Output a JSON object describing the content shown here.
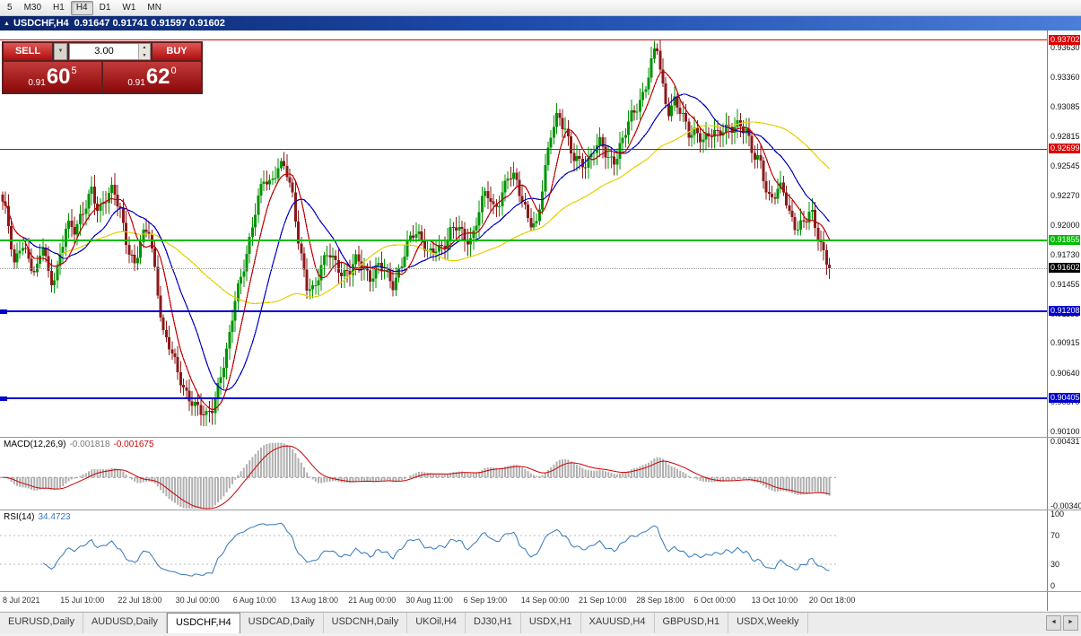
{
  "toolbar": {
    "period_buttons": [
      "5",
      "M30",
      "H1",
      "H4",
      "D1",
      "W1",
      "MN"
    ],
    "active_period": "H4"
  },
  "window": {
    "symbol_period": "USDCHF,H4",
    "ohlc_text": "0.91647 0.91741 0.91597 0.91602",
    "open": "0.91647",
    "high": "0.91741",
    "low": "0.91597",
    "close": "0.91602"
  },
  "icons": {
    "chart_marker": "▲",
    "dropdown": "▼",
    "spin_up": "▲",
    "spin_down": "▼",
    "scroll_left": "◄",
    "scroll_right": "►"
  },
  "trade_panel": {
    "sell_label": "SELL",
    "buy_label": "BUY",
    "volume": "3.00",
    "sell_price": {
      "small": "0.91",
      "big": "60",
      "sup": "5"
    },
    "buy_price": {
      "small": "0.91",
      "big": "62",
      "sup": "0"
    }
  },
  "chart_data": {
    "type": "candlestick",
    "symbol": "USDCHF",
    "timeframe": "H4",
    "price_range": {
      "top": 0.9379,
      "bottom": 0.9005
    },
    "price_axis_ticks": [
      "0.93630",
      "0.93360",
      "0.93085",
      "0.92815",
      "0.92545",
      "0.92270",
      "0.92000",
      "0.91730",
      "0.91455",
      "0.91185",
      "0.90915",
      "0.90640",
      "0.90370",
      "0.90100"
    ],
    "levels": [
      {
        "name": "resistance-line-upper",
        "price": 0.93702,
        "label": "0.93702",
        "color": "#dd0000",
        "thickness": 1
      },
      {
        "name": "resistance-line-lower",
        "price": 0.92699,
        "label": "0.92699",
        "color": "#dd0000",
        "thickness": 1
      },
      {
        "name": "support-line-green",
        "price": 0.91855,
        "label": "0.91855",
        "color": "#00bb00",
        "thickness": 2
      },
      {
        "name": "current-price-line",
        "price": 0.91602,
        "label": "0.91602",
        "color": "#000000",
        "dotted": true
      },
      {
        "name": "support-line-blue-1",
        "price": 0.91208,
        "label": "0.91208",
        "color": "#0000cc",
        "thickness": 2,
        "handles": true
      },
      {
        "name": "support-line-blue-2",
        "price": 0.90405,
        "label": "0.90405",
        "color": "#0000cc",
        "thickness": 2,
        "handles": true
      }
    ],
    "colors": {
      "bull": "#009400",
      "bear": "#8b1a1a",
      "ma_fast": "#c00000",
      "ma_mid": "#0000c0",
      "ma_slow": "#e6cf00",
      "macd_hist": "#b0b0b0",
      "macd_signal": "#cc0000",
      "rsi_line": "#3377bb"
    },
    "moving_averages": [
      {
        "period": 55,
        "color": "#e6cf00"
      },
      {
        "period": 20,
        "color": "#0000c0"
      },
      {
        "period": 8,
        "color": "#c00000"
      }
    ],
    "close_path": [
      [
        0,
        0.9228
      ],
      [
        8,
        0.9205
      ],
      [
        16,
        0.9162
      ],
      [
        24,
        0.9188
      ],
      [
        32,
        0.9168
      ],
      [
        40,
        0.9152
      ],
      [
        48,
        0.9182
      ],
      [
        56,
        0.9146
      ],
      [
        64,
        0.9162
      ],
      [
        74,
        0.92
      ],
      [
        84,
        0.9192
      ],
      [
        94,
        0.9216
      ],
      [
        102,
        0.9236
      ],
      [
        110,
        0.9212
      ],
      [
        118,
        0.9222
      ],
      [
        126,
        0.9232
      ],
      [
        134,
        0.9216
      ],
      [
        142,
        0.9182
      ],
      [
        150,
        0.9162
      ],
      [
        158,
        0.9186
      ],
      [
        166,
        0.9196
      ],
      [
        174,
        0.9152
      ],
      [
        182,
        0.9102
      ],
      [
        190,
        0.9086
      ],
      [
        198,
        0.9062
      ],
      [
        206,
        0.9046
      ],
      [
        214,
        0.904
      ],
      [
        222,
        0.9032
      ],
      [
        230,
        0.9022
      ],
      [
        238,
        0.903
      ],
      [
        246,
        0.9062
      ],
      [
        254,
        0.9092
      ],
      [
        262,
        0.9132
      ],
      [
        270,
        0.9152
      ],
      [
        278,
        0.9182
      ],
      [
        286,
        0.9222
      ],
      [
        294,
        0.9246
      ],
      [
        302,
        0.9236
      ],
      [
        310,
        0.925
      ],
      [
        318,
        0.9254
      ],
      [
        326,
        0.923
      ],
      [
        334,
        0.918
      ],
      [
        342,
        0.9142
      ],
      [
        350,
        0.9136
      ],
      [
        358,
        0.9162
      ],
      [
        366,
        0.918
      ],
      [
        374,
        0.9166
      ],
      [
        382,
        0.915
      ],
      [
        390,
        0.9156
      ],
      [
        398,
        0.9172
      ],
      [
        406,
        0.9162
      ],
      [
        414,
        0.915
      ],
      [
        422,
        0.9161
      ],
      [
        430,
        0.9156
      ],
      [
        438,
        0.9146
      ],
      [
        446,
        0.9162
      ],
      [
        454,
        0.9182
      ],
      [
        462,
        0.9191
      ],
      [
        470,
        0.9186
      ],
      [
        478,
        0.9176
      ],
      [
        486,
        0.9181
      ],
      [
        494,
        0.9176
      ],
      [
        502,
        0.9191
      ],
      [
        510,
        0.9201
      ],
      [
        518,
        0.9191
      ],
      [
        526,
        0.9186
      ],
      [
        534,
        0.9211
      ],
      [
        542,
        0.9231
      ],
      [
        550,
        0.9216
      ],
      [
        558,
        0.9226
      ],
      [
        566,
        0.9246
      ],
      [
        574,
        0.9241
      ],
      [
        582,
        0.9221
      ],
      [
        590,
        0.9206
      ],
      [
        598,
        0.9201
      ],
      [
        606,
        0.9241
      ],
      [
        614,
        0.9281
      ],
      [
        622,
        0.9301
      ],
      [
        630,
        0.9291
      ],
      [
        638,
        0.9266
      ],
      [
        646,
        0.9256
      ],
      [
        654,
        0.9251
      ],
      [
        662,
        0.9271
      ],
      [
        670,
        0.9281
      ],
      [
        678,
        0.9261
      ],
      [
        686,
        0.9256
      ],
      [
        694,
        0.9276
      ],
      [
        702,
        0.9301
      ],
      [
        710,
        0.9311
      ],
      [
        718,
        0.9321
      ],
      [
        726,
        0.9346
      ],
      [
        732,
        0.9366
      ],
      [
        738,
        0.9331
      ],
      [
        744,
        0.9306
      ],
      [
        752,
        0.9316
      ],
      [
        760,
        0.9301
      ],
      [
        768,
        0.9281
      ],
      [
        776,
        0.9286
      ],
      [
        784,
        0.9281
      ],
      [
        792,
        0.9286
      ],
      [
        800,
        0.9281
      ],
      [
        808,
        0.9286
      ],
      [
        816,
        0.9291
      ],
      [
        824,
        0.9296
      ],
      [
        832,
        0.9286
      ],
      [
        840,
        0.9261
      ],
      [
        848,
        0.9256
      ],
      [
        856,
        0.9226
      ],
      [
        864,
        0.9231
      ],
      [
        872,
        0.9236
      ],
      [
        880,
        0.9206
      ],
      [
        888,
        0.9196
      ],
      [
        896,
        0.9206
      ],
      [
        904,
        0.9216
      ],
      [
        912,
        0.9186
      ],
      [
        918,
        0.9171
      ],
      [
        924,
        0.91602
      ]
    ]
  },
  "macd": {
    "name": "MACD(12,26,9)",
    "main_value": "-0.001818",
    "signal_value": "-0.001675",
    "axis_max": "0.00431",
    "axis_min": "-0.00340"
  },
  "rsi": {
    "name": "RSI(14)",
    "value": "34.4723",
    "axis": [
      "100",
      "70",
      "30",
      "0"
    ],
    "level_lines": [
      70,
      30
    ]
  },
  "time_axis": {
    "labels": [
      "8 Jul 2021",
      "15 Jul 10:00",
      "22 Jul 18:00",
      "30 Jul 00:00",
      "6 Aug 10:00",
      "13 Aug 18:00",
      "21 Aug 00:00",
      "30 Aug 11:00",
      "6 Sep 19:00",
      "14 Sep 00:00",
      "21 Sep 10:00",
      "28 Sep 18:00",
      "6 Oct 00:00",
      "13 Oct 10:00",
      "20 Oct 18:00"
    ]
  },
  "tabs": {
    "items": [
      "EURUSD,Daily",
      "AUDUSD,Daily",
      "USDCHF,H4",
      "USDCAD,Daily",
      "USDCNH,Daily",
      "UKOil,H4",
      "DJ30,H1",
      "USDX,H1",
      "XAUUSD,H4",
      "GBPUSD,H1",
      "USDX,Weekly"
    ],
    "active_index": 2
  }
}
